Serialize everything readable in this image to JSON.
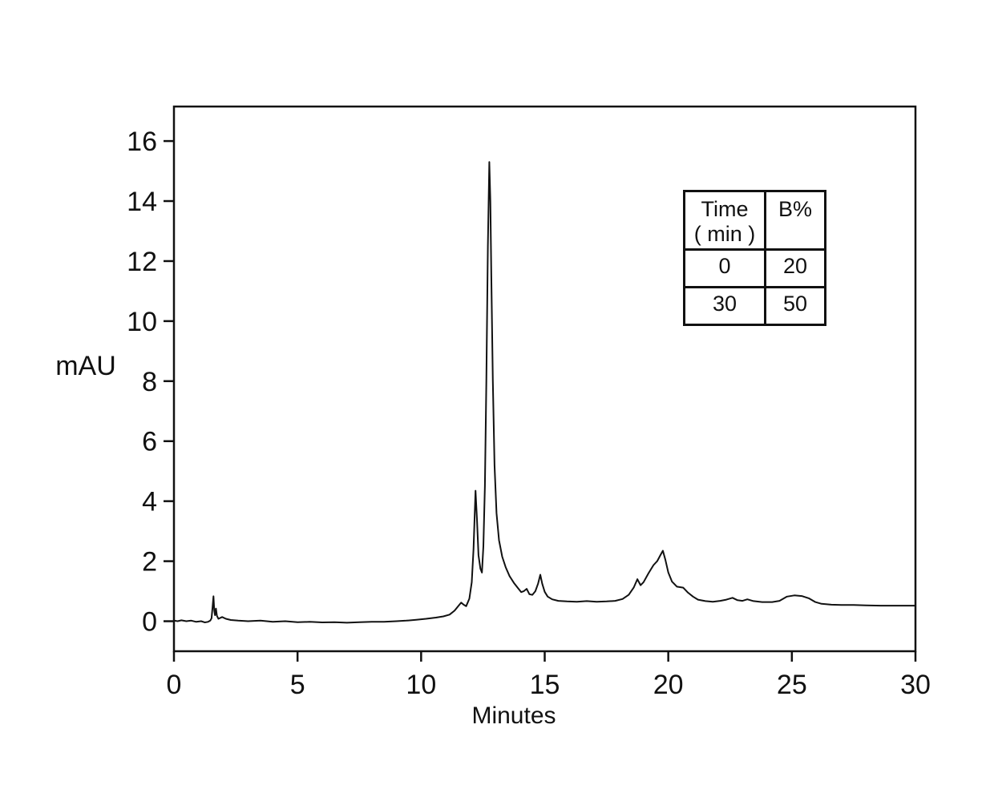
{
  "figure": {
    "description_labels": {
      "ylabel": "mAU",
      "xlabel": "Minutes"
    }
  },
  "chart_data": {
    "type": "line",
    "title": "",
    "xlabel": "Minutes",
    "ylabel": "mAU",
    "xlim": [
      0,
      30
    ],
    "ylim": [
      -1.0,
      17.15
    ],
    "x_ticks": [
      "0",
      "5",
      "10",
      "15",
      "20",
      "25",
      "30"
    ],
    "x_tick_values": [
      0,
      5,
      10,
      15,
      20,
      25,
      30
    ],
    "y_ticks": [
      "0",
      "2",
      "4",
      "6",
      "8",
      "10",
      "12",
      "14",
      "16"
    ],
    "y_tick_values": [
      0,
      2,
      4,
      6,
      8,
      10,
      12,
      14,
      16
    ],
    "grid": "off",
    "line_color": "#111111",
    "background_color": "#ffffff",
    "series": [
      {
        "name": "chromatogram-trace",
        "points": [
          [
            0.0,
            0.02
          ],
          [
            0.15,
            0.0
          ],
          [
            0.3,
            0.03
          ],
          [
            0.5,
            0.0
          ],
          [
            0.7,
            0.02
          ],
          [
            0.9,
            -0.02
          ],
          [
            1.1,
            0.0
          ],
          [
            1.25,
            -0.04
          ],
          [
            1.38,
            -0.02
          ],
          [
            1.47,
            0.02
          ],
          [
            1.52,
            0.1
          ],
          [
            1.56,
            0.45
          ],
          [
            1.6,
            0.83
          ],
          [
            1.63,
            0.35
          ],
          [
            1.66,
            0.2
          ],
          [
            1.7,
            0.42
          ],
          [
            1.74,
            0.18
          ],
          [
            1.8,
            0.08
          ],
          [
            1.95,
            0.14
          ],
          [
            2.1,
            0.08
          ],
          [
            2.3,
            0.04
          ],
          [
            2.6,
            0.02
          ],
          [
            3.0,
            0.0
          ],
          [
            3.5,
            0.02
          ],
          [
            4.0,
            -0.02
          ],
          [
            4.5,
            0.0
          ],
          [
            5.0,
            -0.03
          ],
          [
            5.5,
            -0.02
          ],
          [
            6.0,
            -0.04
          ],
          [
            6.5,
            -0.03
          ],
          [
            7.0,
            -0.05
          ],
          [
            7.5,
            -0.03
          ],
          [
            8.0,
            -0.02
          ],
          [
            8.5,
            -0.02
          ],
          [
            9.0,
            0.0
          ],
          [
            9.4,
            0.02
          ],
          [
            9.8,
            0.05
          ],
          [
            10.2,
            0.08
          ],
          [
            10.6,
            0.12
          ],
          [
            10.9,
            0.16
          ],
          [
            11.15,
            0.22
          ],
          [
            11.35,
            0.35
          ],
          [
            11.5,
            0.5
          ],
          [
            11.62,
            0.62
          ],
          [
            11.72,
            0.55
          ],
          [
            11.82,
            0.5
          ],
          [
            11.95,
            0.75
          ],
          [
            12.05,
            1.3
          ],
          [
            12.12,
            2.4
          ],
          [
            12.2,
            4.35
          ],
          [
            12.26,
            3.4
          ],
          [
            12.32,
            2.2
          ],
          [
            12.4,
            1.75
          ],
          [
            12.46,
            1.62
          ],
          [
            12.52,
            2.5
          ],
          [
            12.58,
            4.5
          ],
          [
            12.64,
            8.0
          ],
          [
            12.7,
            12.5
          ],
          [
            12.76,
            15.3
          ],
          [
            12.8,
            14.0
          ],
          [
            12.84,
            11.5
          ],
          [
            12.9,
            8.0
          ],
          [
            12.97,
            5.2
          ],
          [
            13.05,
            3.6
          ],
          [
            13.15,
            2.7
          ],
          [
            13.28,
            2.15
          ],
          [
            13.42,
            1.8
          ],
          [
            13.58,
            1.5
          ],
          [
            13.75,
            1.28
          ],
          [
            13.92,
            1.1
          ],
          [
            14.05,
            0.97
          ],
          [
            14.15,
            1.0
          ],
          [
            14.27,
            1.08
          ],
          [
            14.38,
            0.9
          ],
          [
            14.5,
            0.88
          ],
          [
            14.62,
            1.0
          ],
          [
            14.73,
            1.25
          ],
          [
            14.82,
            1.55
          ],
          [
            14.9,
            1.25
          ],
          [
            15.0,
            0.98
          ],
          [
            15.12,
            0.82
          ],
          [
            15.3,
            0.73
          ],
          [
            15.55,
            0.68
          ],
          [
            15.9,
            0.66
          ],
          [
            16.3,
            0.65
          ],
          [
            16.7,
            0.67
          ],
          [
            17.1,
            0.65
          ],
          [
            17.5,
            0.66
          ],
          [
            17.85,
            0.68
          ],
          [
            18.15,
            0.74
          ],
          [
            18.4,
            0.88
          ],
          [
            18.6,
            1.12
          ],
          [
            18.75,
            1.4
          ],
          [
            18.88,
            1.2
          ],
          [
            19.0,
            1.3
          ],
          [
            19.2,
            1.6
          ],
          [
            19.4,
            1.87
          ],
          [
            19.55,
            2.0
          ],
          [
            19.68,
            2.2
          ],
          [
            19.78,
            2.35
          ],
          [
            19.88,
            2.05
          ],
          [
            20.0,
            1.62
          ],
          [
            20.15,
            1.32
          ],
          [
            20.35,
            1.15
          ],
          [
            20.6,
            1.12
          ],
          [
            20.8,
            0.95
          ],
          [
            21.0,
            0.82
          ],
          [
            21.2,
            0.72
          ],
          [
            21.5,
            0.67
          ],
          [
            21.8,
            0.65
          ],
          [
            22.1,
            0.68
          ],
          [
            22.35,
            0.72
          ],
          [
            22.6,
            0.78
          ],
          [
            22.8,
            0.7
          ],
          [
            23.0,
            0.68
          ],
          [
            23.2,
            0.73
          ],
          [
            23.45,
            0.67
          ],
          [
            23.8,
            0.64
          ],
          [
            24.2,
            0.64
          ],
          [
            24.5,
            0.68
          ],
          [
            24.8,
            0.82
          ],
          [
            25.1,
            0.86
          ],
          [
            25.4,
            0.84
          ],
          [
            25.7,
            0.76
          ],
          [
            25.95,
            0.64
          ],
          [
            26.2,
            0.58
          ],
          [
            26.6,
            0.55
          ],
          [
            27.0,
            0.54
          ],
          [
            27.5,
            0.54
          ],
          [
            28.0,
            0.53
          ],
          [
            28.6,
            0.52
          ],
          [
            29.2,
            0.52
          ],
          [
            30.0,
            0.52
          ]
        ]
      }
    ],
    "inset_table": {
      "header_col1_line1": "Time",
      "header_col1_line2": "( min )",
      "header_col2": "B%",
      "rows": [
        {
          "time": "0",
          "b": "20"
        },
        {
          "time": "30",
          "b": "50"
        }
      ]
    }
  }
}
